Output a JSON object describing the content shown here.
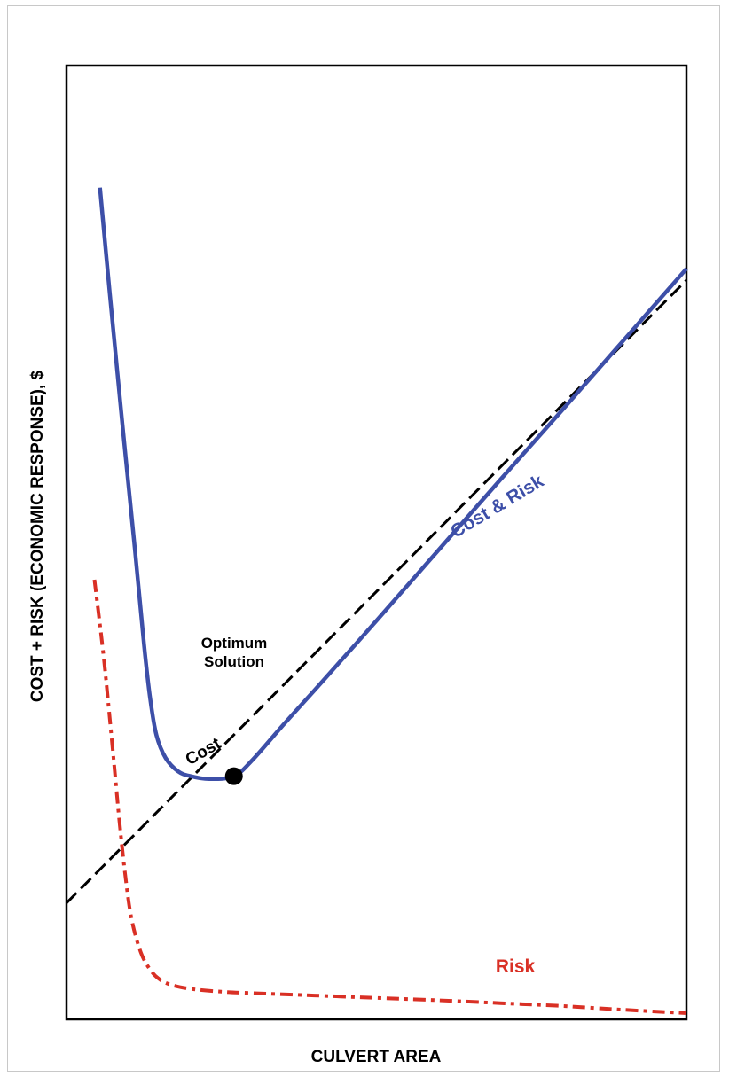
{
  "chart_data": {
    "type": "line",
    "title": "",
    "xlabel": "CULVERT AREA",
    "ylabel": "COST + RISK (ECONOMIC RESPONSE), $",
    "xlim": [
      0,
      100
    ],
    "ylim": [
      0,
      100
    ],
    "grid": false,
    "legend": "none",
    "series": [
      {
        "name": "Cost & Risk",
        "color": "#3d4fa8",
        "style": "solid",
        "x": [
          5.4,
          7,
          9,
          11,
          12.5,
          13.5,
          14.5,
          16,
          18,
          20,
          23,
          27,
          30,
          35,
          40,
          50,
          60,
          70,
          80,
          90,
          100
        ],
        "y": [
          87.2,
          76,
          62.5,
          49.5,
          39.3,
          33.6,
          29.8,
          27.4,
          26,
          25.5,
          25.2,
          25.5,
          27.2,
          30.9,
          34.5,
          41.8,
          49.2,
          56.6,
          63.9,
          71.3,
          78.7
        ]
      },
      {
        "name": "Cost",
        "color": "#000000",
        "style": "dashed",
        "x": [
          0,
          100
        ],
        "y": [
          12.2,
          77.5
        ]
      },
      {
        "name": "Risk",
        "color": "#d93025",
        "style": "dashdot",
        "x": [
          4.5,
          6,
          7.5,
          8.5,
          9.5,
          10.5,
          12,
          13.5,
          15,
          17,
          20,
          25,
          30,
          40,
          50,
          60,
          70,
          80,
          90,
          100
        ],
        "y": [
          46.1,
          38,
          28,
          21,
          15,
          10.5,
          7,
          5.2,
          4.2,
          3.6,
          3.2,
          2.9,
          2.75,
          2.5,
          2.25,
          2,
          1.7,
          1.4,
          1.0,
          0.65
        ]
      }
    ],
    "annotations": {
      "optimum_label_line1": "Optimum",
      "optimum_label_line2": "Solution",
      "optimum_point": {
        "x": 27,
        "y": 25.5
      },
      "cost_label": "Cost",
      "risk_label": "Risk",
      "cost_risk_label": "Cost & Risk"
    }
  }
}
